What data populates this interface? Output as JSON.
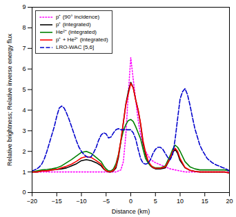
{
  "chart_data": {
    "type": "line",
    "xlabel": "Distance (km)",
    "ylabel": "Relative brightness; Relative inverse energy flux",
    "xlim": [
      -20,
      20
    ],
    "ylim": [
      0,
      9
    ],
    "xticks": [
      -20,
      -15,
      -10,
      -5,
      0,
      5,
      10,
      15,
      20
    ],
    "yticks": [
      0,
      1,
      2,
      3,
      4,
      5,
      6,
      7,
      8,
      9
    ],
    "grid": false,
    "legend": "upper-left",
    "series": [
      {
        "name": "p⁺ (90° incidence)",
        "color": "#ff00ff",
        "line_style": "dotted",
        "x": [
          -20,
          -19,
          -18,
          -17,
          -16,
          -15,
          -14,
          -13,
          -12,
          -11,
          -10,
          -9,
          -8,
          -7,
          -6,
          -5,
          -4,
          -3,
          -2,
          -1.5,
          -1,
          -0.5,
          0,
          0.5,
          1,
          1.5,
          2,
          2.5,
          3,
          4,
          5,
          6,
          7,
          8,
          9,
          10,
          11,
          12,
          13,
          14,
          15,
          16,
          17,
          18,
          19,
          20
        ],
        "values": [
          1.0,
          1.0,
          1.0,
          1.0,
          1.0,
          1.0,
          1.0,
          1.0,
          1.0,
          1.0,
          1.0,
          1.0,
          1.0,
          1.0,
          1.0,
          1.0,
          1.0,
          1.0,
          1.1,
          1.5,
          2.8,
          4.8,
          6.55,
          5.5,
          4.5,
          3.5,
          2.8,
          2.3,
          2.0,
          1.6,
          1.45,
          1.35,
          1.25,
          1.15,
          1.1,
          1.05,
          1.0,
          1.0,
          1.0,
          1.0,
          1.0,
          1.0,
          1.0,
          1.0,
          1.0,
          1.0
        ]
      },
      {
        "name": "p⁺ (integrated)",
        "color": "#000000",
        "line_style": "solid",
        "x": [
          -20,
          -19,
          -18,
          -17,
          -16,
          -15,
          -14,
          -13,
          -12,
          -11,
          -10,
          -9,
          -8,
          -7,
          -6,
          -5.5,
          -5,
          -4.5,
          -4,
          -3.5,
          -3,
          -2.5,
          -2,
          -1.5,
          -1,
          -0.5,
          0,
          0.5,
          1,
          1.5,
          2,
          2.5,
          3,
          3.5,
          4,
          4.5,
          5,
          6,
          7,
          8,
          8.5,
          9,
          9.5,
          10,
          11,
          12,
          13,
          14,
          15,
          16,
          17,
          18,
          19,
          20
        ],
        "values": [
          1.0,
          1.0,
          1.05,
          1.05,
          1.1,
          1.12,
          1.15,
          1.2,
          1.3,
          1.4,
          1.55,
          1.6,
          1.55,
          1.45,
          1.3,
          1.15,
          1.05,
          1.0,
          1.0,
          1.05,
          1.2,
          1.7,
          2.5,
          3.4,
          4.3,
          4.9,
          5.35,
          5.1,
          4.5,
          4.0,
          3.3,
          2.4,
          1.85,
          1.5,
          1.3,
          1.2,
          1.15,
          1.15,
          1.2,
          1.65,
          1.95,
          2.1,
          1.9,
          1.55,
          1.2,
          1.08,
          1.03,
          1.0,
          1.0,
          1.0,
          1.0,
          1.0,
          1.0,
          0.95
        ]
      },
      {
        "name": "He²⁺ (integrated)",
        "color": "#008000",
        "line_style": "solid",
        "x": [
          -20,
          -19,
          -18,
          -17,
          -16,
          -15,
          -14,
          -13,
          -12,
          -11,
          -10,
          -9,
          -8,
          -7,
          -6,
          -5.5,
          -5,
          -4.5,
          -4,
          -3.5,
          -3,
          -2.5,
          -2,
          -1.5,
          -1,
          -0.5,
          0,
          0.5,
          1,
          1.5,
          2,
          2.5,
          3,
          3.5,
          4,
          4.5,
          5,
          6,
          7,
          8,
          8.5,
          9,
          9.5,
          10,
          11,
          12,
          13,
          14,
          15,
          16,
          17,
          18,
          19,
          20
        ],
        "values": [
          1.0,
          1.05,
          1.1,
          1.12,
          1.15,
          1.2,
          1.3,
          1.45,
          1.6,
          1.78,
          1.95,
          2.0,
          1.9,
          1.7,
          1.5,
          1.3,
          1.15,
          1.05,
          1.05,
          1.15,
          1.4,
          1.85,
          2.5,
          3.0,
          3.3,
          3.5,
          3.55,
          3.45,
          3.2,
          2.9,
          2.6,
          2.1,
          1.65,
          1.45,
          1.3,
          1.25,
          1.2,
          1.2,
          1.3,
          1.8,
          2.1,
          2.3,
          2.2,
          2.0,
          1.5,
          1.25,
          1.15,
          1.1,
          1.1,
          1.1,
          1.1,
          1.1,
          1.1,
          1.05
        ]
      },
      {
        "name": "p⁺ + He²⁺ (integrated)",
        "color": "#ff0000",
        "line_style": "solid",
        "x": [
          -20,
          -19,
          -18,
          -17,
          -16,
          -15,
          -14,
          -13,
          -12,
          -11,
          -10,
          -9,
          -8,
          -7,
          -6,
          -5.5,
          -5,
          -4.5,
          -4,
          -3.5,
          -3,
          -2.5,
          -2,
          -1.5,
          -1,
          -0.5,
          0,
          0.5,
          1,
          1.5,
          2,
          2.5,
          3,
          3.5,
          4,
          4.5,
          5,
          6,
          7,
          8,
          8.5,
          9,
          9.5,
          10,
          11,
          12,
          13,
          14,
          15,
          16,
          17,
          18,
          19,
          20
        ],
        "values": [
          1.0,
          1.0,
          1.05,
          1.05,
          1.1,
          1.12,
          1.2,
          1.28,
          1.38,
          1.52,
          1.68,
          1.75,
          1.7,
          1.55,
          1.38,
          1.18,
          1.06,
          1.01,
          1.01,
          1.08,
          1.28,
          1.8,
          2.55,
          3.4,
          4.25,
          4.78,
          5.3,
          5.08,
          4.5,
          4.0,
          3.35,
          2.5,
          1.95,
          1.55,
          1.35,
          1.22,
          1.18,
          1.18,
          1.25,
          1.68,
          2.0,
          2.15,
          2.0,
          1.65,
          1.22,
          1.08,
          1.03,
          1.0,
          1.0,
          1.0,
          1.0,
          1.0,
          1.0,
          0.95
        ]
      },
      {
        "name": "LRO-WAC [5,6]",
        "color": "#0000cc",
        "line_style": "dashed",
        "x": [
          -20,
          -19.5,
          -19,
          -18.5,
          -18,
          -17.5,
          -17,
          -16.5,
          -16,
          -15.5,
          -15,
          -14.5,
          -14,
          -13.5,
          -13,
          -12.5,
          -12,
          -11.5,
          -11,
          -10.5,
          -10,
          -9.5,
          -9,
          -8.5,
          -8,
          -7.5,
          -7,
          -6.5,
          -6,
          -5.5,
          -5,
          -4.5,
          -4,
          -3.5,
          -3,
          -2.5,
          -2,
          -1.5,
          -1,
          -0.5,
          0,
          0.5,
          1,
          1.5,
          2,
          2.5,
          3,
          3.5,
          4,
          4.5,
          5,
          5.5,
          6,
          6.5,
          7,
          7.5,
          8,
          8.5,
          9,
          9.5,
          10,
          10.5,
          11,
          11.5,
          12,
          12.5,
          13,
          13.5,
          14,
          14.5,
          15,
          15.5,
          16,
          16.5,
          17,
          17.5,
          18,
          18.5,
          19,
          19.5,
          20
        ],
        "values": [
          1.05,
          1.1,
          1.15,
          1.25,
          1.4,
          1.65,
          2.0,
          2.4,
          2.8,
          3.2,
          3.7,
          4.1,
          4.2,
          4.1,
          3.85,
          3.55,
          3.2,
          2.85,
          2.5,
          2.2,
          2.0,
          1.85,
          1.75,
          1.7,
          1.75,
          1.95,
          2.2,
          2.55,
          2.8,
          2.9,
          2.85,
          2.65,
          2.7,
          2.9,
          3.05,
          3.1,
          3.05,
          3.05,
          3.05,
          3.05,
          3.05,
          2.9,
          2.6,
          2.1,
          1.65,
          1.42,
          1.38,
          1.42,
          1.6,
          1.9,
          2.1,
          2.2,
          2.2,
          2.1,
          1.9,
          1.7,
          1.6,
          1.85,
          2.6,
          3.6,
          4.55,
          4.9,
          5.05,
          4.75,
          4.25,
          3.65,
          3.1,
          2.7,
          2.3,
          2.05,
          1.85,
          1.65,
          1.55,
          1.45,
          1.38,
          1.32,
          1.28,
          1.22,
          1.18,
          1.12,
          1.06
        ]
      }
    ]
  }
}
